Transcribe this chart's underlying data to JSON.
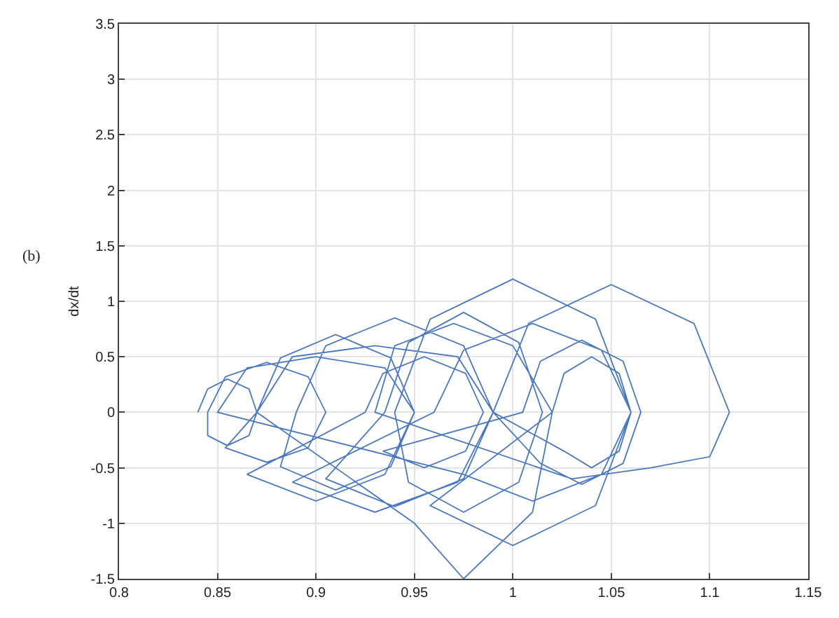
{
  "chart_data": {
    "type": "line",
    "ylabel": "dx/dt",
    "annotations": [
      "(b)"
    ],
    "xlim": [
      0.8,
      1.15
    ],
    "xticks": [
      0.8,
      0.85,
      0.9,
      0.95,
      1,
      1.05,
      1.1,
      1.15
    ],
    "ylim": [
      -1.5,
      3.5
    ],
    "yticks": [
      -1.5,
      -1,
      -0.5,
      0,
      0.5,
      1,
      1.5,
      2,
      2.5,
      3,
      3.5
    ],
    "grid": true,
    "marker": "none",
    "line_style": "solid",
    "series": [
      {
        "color": "#4a78c0",
        "x": [
          0.84,
          0.845,
          0.855,
          0.866,
          0.87,
          0.866,
          0.855,
          0.845,
          0.845,
          0.854,
          0.875,
          0.896,
          0.905,
          0.896,
          0.875,
          0.854,
          0.87,
          0.882,
          0.91,
          0.938,
          0.95,
          0.938,
          0.91,
          0.882,
          0.89,
          0.905,
          0.94,
          0.975,
          0.99,
          0.975,
          0.94,
          0.905,
          0.935,
          0.947,
          0.975,
          1.003,
          1.015,
          1.003,
          0.975,
          0.947,
          0.94,
          0.958,
          1.0,
          1.042,
          1.06,
          1.042,
          1.0,
          0.958,
          1.02,
          1.026,
          1.04,
          1.054,
          1.06,
          1.054,
          1.04,
          1.026,
          0.99,
          1.008,
          1.05,
          1.092,
          1.11,
          1.1,
          1.07,
          1.03,
          0.93,
          0.94,
          0.97,
          1.0,
          1.02,
          1.01,
          0.975,
          0.95,
          0.87,
          0.888,
          0.93,
          0.972,
          0.99,
          0.972,
          0.93,
          0.888,
          0.96,
          0.975,
          1.01,
          1.045,
          1.06,
          1.045,
          1.01,
          0.975,
          0.85,
          0.865,
          0.9,
          0.935,
          0.95,
          0.935,
          0.9,
          0.865,
          0.925,
          0.934,
          0.955,
          0.976,
          0.985,
          0.976,
          0.955,
          0.934,
          1.005,
          1.014,
          1.035,
          1.056,
          1.065,
          1.056,
          1.035,
          1.014,
          0.99
        ],
        "values": [
          0,
          0.21,
          0.3,
          0.21,
          0,
          -0.21,
          -0.3,
          -0.21,
          0,
          0.32,
          0.45,
          0.32,
          0,
          -0.32,
          -0.45,
          -0.32,
          0,
          0.49,
          0.7,
          0.49,
          0,
          -0.49,
          -0.7,
          -0.49,
          0,
          0.6,
          0.85,
          0.6,
          0,
          -0.6,
          -0.85,
          -0.6,
          0,
          0.63,
          0.9,
          0.63,
          0,
          -0.63,
          -0.9,
          -0.63,
          0,
          0.84,
          1.2,
          0.84,
          0,
          -0.84,
          -1.2,
          -0.84,
          0,
          0.35,
          0.5,
          0.35,
          0,
          -0.35,
          -0.5,
          -0.35,
          0,
          0.8,
          1.15,
          0.8,
          0,
          -0.4,
          -0.5,
          -0.6,
          0,
          0.6,
          0.8,
          0.6,
          0,
          -0.9,
          -1.5,
          -1.0,
          0,
          0.5,
          0.6,
          0.5,
          0,
          -0.63,
          -0.9,
          -0.63,
          0,
          0.56,
          0.8,
          0.56,
          0,
          -0.56,
          -0.8,
          -0.56,
          0,
          0.4,
          0.5,
          0.4,
          0,
          -0.56,
          -0.8,
          -0.56,
          0,
          0.35,
          0.5,
          0.35,
          0,
          -0.35,
          -0.5,
          -0.35,
          0,
          0.46,
          0.65,
          0.46,
          0,
          -0.46,
          -0.65,
          -0.46,
          0
        ]
      }
    ]
  }
}
